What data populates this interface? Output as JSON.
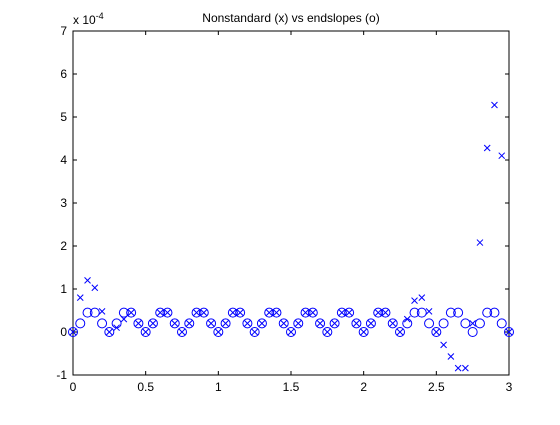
{
  "chart_data": {
    "type": "scatter",
    "title": "Nonstandard (x) vs endslopes (o)",
    "xlabel": "",
    "ylabel": "",
    "exponent_label": {
      "base": "x 10",
      "power": "-4"
    },
    "xlim": [
      0,
      3
    ],
    "ylim": [
      -1,
      7
    ],
    "x_ticks": [
      0,
      0.5,
      1,
      1.5,
      2,
      2.5,
      3
    ],
    "x_tick_labels": [
      "0",
      "0.5",
      "1",
      "1.5",
      "2",
      "2.5",
      "3"
    ],
    "y_ticks": [
      -1,
      0,
      1,
      2,
      3,
      4,
      5,
      6,
      7
    ],
    "y_tick_labels": [
      "-1",
      "0",
      "1",
      "2",
      "3",
      "4",
      "5",
      "6",
      "7"
    ],
    "grid": false,
    "marker_color": "#0000ff",
    "series": [
      {
        "marker": "x",
        "x": [
          0.0,
          0.05,
          0.1,
          0.15,
          0.2,
          0.25,
          0.3,
          0.35,
          0.4,
          0.45,
          0.5,
          0.55,
          0.6,
          0.65,
          0.7,
          0.75,
          0.8,
          0.85,
          0.9,
          0.95,
          1.0,
          1.05,
          1.1,
          1.15,
          1.2,
          1.25,
          1.3,
          1.35,
          1.4,
          1.45,
          1.5,
          1.55,
          1.6,
          1.65,
          1.7,
          1.75,
          1.8,
          1.85,
          1.9,
          1.95,
          2.0,
          2.05,
          2.1,
          2.15,
          2.2,
          2.25,
          2.3,
          2.35,
          2.4,
          2.45,
          2.5,
          2.55,
          2.6,
          2.65,
          2.7,
          2.75,
          2.8,
          2.85,
          2.9,
          2.95,
          3.0
        ],
        "y": [
          0.0,
          0.8,
          1.2,
          1.03,
          0.48,
          0.0,
          0.1,
          0.3,
          0.45,
          0.2,
          0.0,
          0.2,
          0.45,
          0.45,
          0.2,
          0.0,
          0.2,
          0.45,
          0.45,
          0.2,
          0.0,
          0.2,
          0.45,
          0.45,
          0.2,
          0.0,
          0.2,
          0.45,
          0.45,
          0.2,
          0.0,
          0.2,
          0.45,
          0.45,
          0.2,
          0.0,
          0.2,
          0.45,
          0.45,
          0.2,
          0.0,
          0.2,
          0.45,
          0.45,
          0.2,
          0.0,
          0.3,
          0.73,
          0.8,
          0.48,
          0.0,
          -0.3,
          -0.57,
          -0.84,
          -0.84,
          0.2,
          2.08,
          4.28,
          5.28,
          4.1,
          0.0
        ]
      },
      {
        "marker": "o",
        "x": [
          0.0,
          0.05,
          0.1,
          0.15,
          0.2,
          0.25,
          0.3,
          0.35,
          0.4,
          0.45,
          0.5,
          0.55,
          0.6,
          0.65,
          0.7,
          0.75,
          0.8,
          0.85,
          0.9,
          0.95,
          1.0,
          1.05,
          1.1,
          1.15,
          1.2,
          1.25,
          1.3,
          1.35,
          1.4,
          1.45,
          1.5,
          1.55,
          1.6,
          1.65,
          1.7,
          1.75,
          1.8,
          1.85,
          1.9,
          1.95,
          2.0,
          2.05,
          2.1,
          2.15,
          2.2,
          2.25,
          2.3,
          2.35,
          2.4,
          2.45,
          2.5,
          2.55,
          2.6,
          2.65,
          2.7,
          2.75,
          2.8,
          2.85,
          2.9,
          2.95,
          3.0
        ],
        "y": [
          0.0,
          0.2,
          0.45,
          0.45,
          0.2,
          0.0,
          0.2,
          0.45,
          0.45,
          0.2,
          0.0,
          0.2,
          0.45,
          0.45,
          0.2,
          0.0,
          0.2,
          0.45,
          0.45,
          0.2,
          0.0,
          0.2,
          0.45,
          0.45,
          0.2,
          0.0,
          0.2,
          0.45,
          0.45,
          0.2,
          0.0,
          0.2,
          0.45,
          0.45,
          0.2,
          0.0,
          0.2,
          0.45,
          0.45,
          0.2,
          0.0,
          0.2,
          0.45,
          0.45,
          0.2,
          0.0,
          0.2,
          0.45,
          0.45,
          0.2,
          0.0,
          0.2,
          0.45,
          0.45,
          0.2,
          0.0,
          0.2,
          0.45,
          0.45,
          0.2,
          0.0
        ]
      }
    ]
  }
}
